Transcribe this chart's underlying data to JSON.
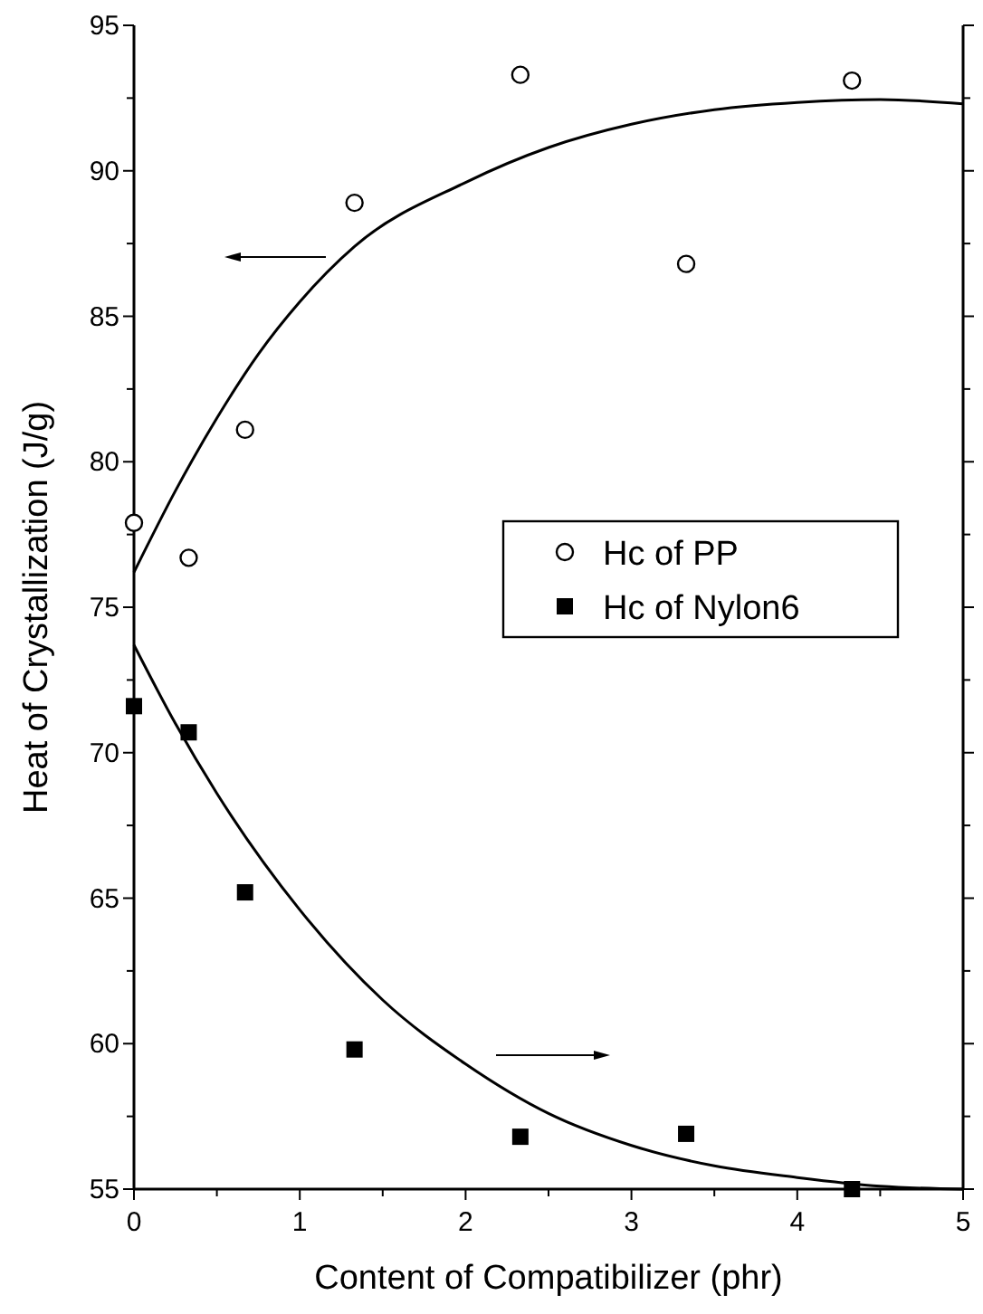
{
  "chart_data": {
    "type": "scatter",
    "xlabel": "Content of Compatibilizer (phr)",
    "ylabel": "Heat of Crystallization (J/g)",
    "xlim": [
      0,
      5
    ],
    "ylim": [
      55,
      95
    ],
    "xticks": [
      0,
      {
        "value": 0.5,
        "label": null
      },
      1,
      {
        "value": 1.5,
        "label": null
      },
      2,
      {
        "value": 2.5,
        "label": null
      },
      3,
      {
        "value": 3.5,
        "label": null
      },
      4,
      {
        "value": 4.5,
        "label": null
      },
      5
    ],
    "yticks": [
      55,
      {
        "value": 57.5,
        "label": null
      },
      60,
      {
        "value": 62.5,
        "label": null
      },
      65,
      {
        "value": 67.5,
        "label": null
      },
      70,
      {
        "value": 72.5,
        "label": null
      },
      75,
      {
        "value": 77.5,
        "label": null
      },
      80,
      {
        "value": 82.5,
        "label": null
      },
      85,
      {
        "value": 87.5,
        "label": null
      },
      90,
      {
        "value": 92.5,
        "label": null
      },
      95
    ],
    "grid": false,
    "legend": "right",
    "series": [
      {
        "name": "Hc of PP",
        "marker": "circle",
        "color": "#000000",
        "x": [
          0,
          0.33,
          0.67,
          1.33,
          2.33,
          3.33,
          4.33
        ],
        "values": [
          77.9,
          76.7,
          81.1,
          88.9,
          93.3,
          86.8,
          93.1
        ]
      },
      {
        "name": "Hc of Nylon6",
        "marker": "square",
        "color": "#000000",
        "x": [
          0,
          0.33,
          0.67,
          1.33,
          2.33,
          3.33,
          4.33
        ],
        "values": [
          71.6,
          70.7,
          65.2,
          59.8,
          56.8,
          56.9,
          55.0
        ]
      },
      {
        "type": "line",
        "marker": "none",
        "line_style": "solid",
        "color": "#000000",
        "x": [
          0,
          0.25,
          0.5,
          0.75,
          1,
          1.33,
          2,
          2.5,
          3,
          3.5,
          4,
          4.5,
          5
        ],
        "values": [
          76.2,
          79.0,
          81.5,
          83.7,
          85.5,
          87.4,
          89.6,
          90.8,
          91.6,
          92.1,
          92.35,
          92.45,
          92.3
        ]
      },
      {
        "type": "line",
        "marker": "none",
        "line_style": "solid",
        "color": "#000000",
        "x": [
          0,
          0.25,
          0.5,
          1,
          1.5,
          2,
          2.5,
          3,
          3.5,
          4,
          4.5,
          5
        ],
        "values": [
          73.7,
          71.0,
          68.6,
          64.6,
          61.5,
          59.3,
          57.6,
          56.5,
          55.8,
          55.4,
          55.1,
          55.0
        ]
      }
    ]
  }
}
